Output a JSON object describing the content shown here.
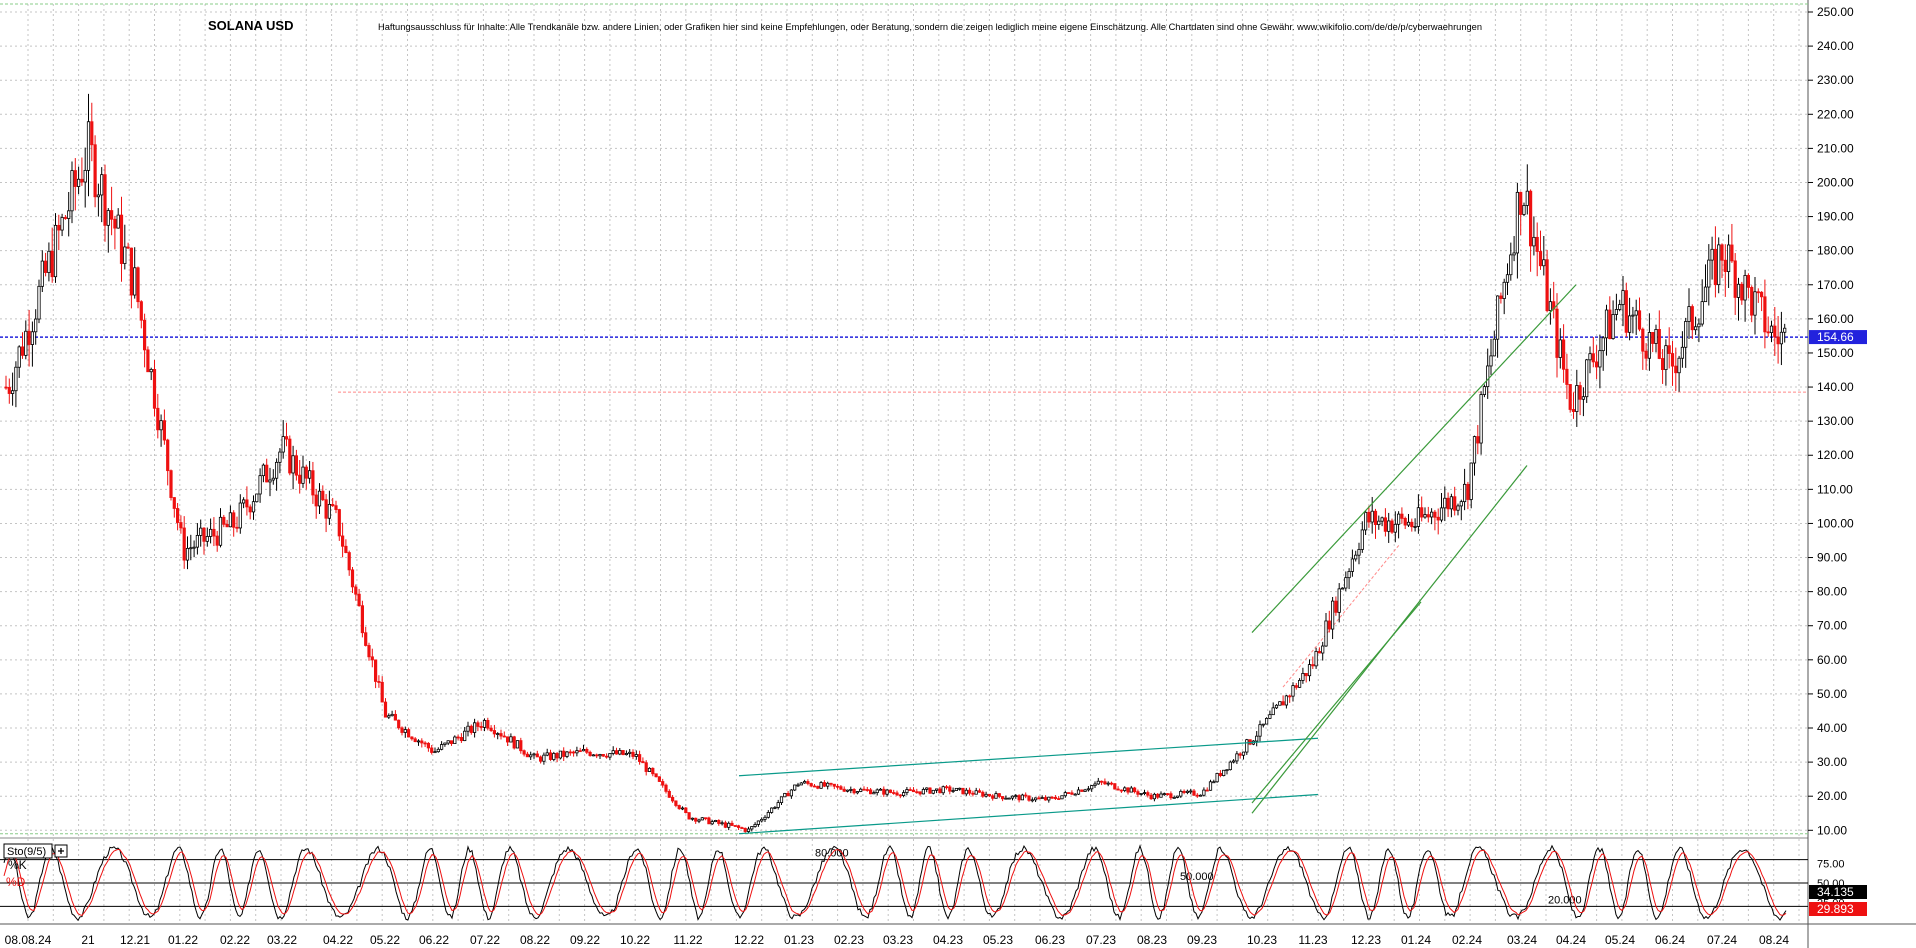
{
  "chart_data": {
    "type": "candlestick",
    "title": "SOLANA USD",
    "disclaimer": "Haftungsausschluss für Inhalte: Alle Trendkanäle bzw. andere Linien, oder Grafiken hier sind keine Empfehlungen, oder Beratung, sondern die zeigen lediglich meine eigene Einschätzung. Alle Chartdaten sind ohne Gewähr. www.wikifolio.com/de/de/p/cyberwaehrungen",
    "x_labels": [
      "08.08.24",
      "11.21",
      "12.21",
      "01.22",
      "02.22",
      "03.22",
      "04.22",
      "05.22",
      "06.22",
      "07.22",
      "08.22",
      "09.22",
      "10.22",
      "11.22",
      "12.22",
      "01.23",
      "02.23",
      "03.23",
      "04.23",
      "05.23",
      "06.23",
      "07.23",
      "08.23",
      "09.23",
      "10.23",
      "11.23",
      "12.23",
      "01.24",
      "02.24",
      "03.24",
      "04.24",
      "05.24",
      "06.24",
      "07.24",
      "08.24"
    ],
    "x_labels_display": [
      "08.08.24",
      "21",
      "12.21",
      "01.22",
      "02.22",
      "03.22",
      "04.22",
      "05.22",
      "06.22",
      "07.22",
      "08.22",
      "09.22",
      "10.22",
      "11.22",
      "12.22",
      "01.23",
      "02.23",
      "03.23",
      "04.23",
      "05.23",
      "06.23",
      "07.23",
      "08.23",
      "09.23",
      "10.23",
      "11.23",
      "12.23",
      "01.24",
      "02.24",
      "03.24",
      "04.24",
      "05.24",
      "06.24",
      "07.24",
      "08.24"
    ],
    "y_ticks": [
      "250.00",
      "240.00",
      "230.00",
      "220.00",
      "210.00",
      "200.00",
      "190.00",
      "180.00",
      "170.00",
      "160.00",
      "150.00",
      "140.00",
      "130.00",
      "120.00",
      "110.00",
      "100.00",
      "90.00",
      "80.00",
      "70.00",
      "60.00",
      "50.00",
      "40.00",
      "30.00",
      "20.00",
      "10.00"
    ],
    "ylim": [
      5,
      253
    ],
    "last_price": "154.66",
    "reference_level": 138.5,
    "green_horizontal_level": 9,
    "monthly_close_approx": [
      {
        "month": "11.21",
        "close": 210
      },
      {
        "month": "12.21",
        "close": 170
      },
      {
        "month": "01.22",
        "close": 92
      },
      {
        "month": "02.22",
        "close": 100
      },
      {
        "month": "03.22",
        "close": 122
      },
      {
        "month": "04.22",
        "close": 100
      },
      {
        "month": "05.22",
        "close": 44
      },
      {
        "month": "06.22",
        "close": 33
      },
      {
        "month": "07.22",
        "close": 42
      },
      {
        "month": "08.22",
        "close": 31
      },
      {
        "month": "09.22",
        "close": 33
      },
      {
        "month": "10.22",
        "close": 32
      },
      {
        "month": "11.22",
        "close": 14
      },
      {
        "month": "12.22",
        "close": 10
      },
      {
        "month": "01.23",
        "close": 24
      },
      {
        "month": "02.23",
        "close": 22
      },
      {
        "month": "03.23",
        "close": 21
      },
      {
        "month": "04.23",
        "close": 22
      },
      {
        "month": "05.23",
        "close": 20
      },
      {
        "month": "06.23",
        "close": 19
      },
      {
        "month": "07.23",
        "close": 24
      },
      {
        "month": "08.23",
        "close": 20
      },
      {
        "month": "09.23",
        "close": 21
      },
      {
        "month": "10.23",
        "close": 40
      },
      {
        "month": "11.23",
        "close": 59
      },
      {
        "month": "12.23",
        "close": 101
      },
      {
        "month": "01.24",
        "close": 100
      },
      {
        "month": "02.24",
        "close": 110
      },
      {
        "month": "03.24",
        "close": 200
      },
      {
        "month": "04.24",
        "close": 135
      },
      {
        "month": "05.24",
        "close": 165
      },
      {
        "month": "06.24",
        "close": 145
      },
      {
        "month": "07.24",
        "close": 180
      },
      {
        "month": "08.24",
        "close": 154.66
      }
    ],
    "trendlines": [
      {
        "color": "#0a9a8a",
        "from": [
          "12.22",
          26
        ],
        "to": [
          "11.23",
          37
        ]
      },
      {
        "color": "#0a9a8a",
        "from": [
          "12.22",
          9
        ],
        "to": [
          "11.23",
          20.5
        ]
      },
      {
        "color": "#3a9a3a",
        "from": [
          "10.23",
          68
        ],
        "to": [
          "04.24",
          170
        ]
      },
      {
        "color": "#3a9a3a",
        "from": [
          "10.23",
          15
        ],
        "to": [
          "03.24",
          117
        ]
      },
      {
        "color": "#3a9a3a",
        "from": [
          "10.23",
          18
        ],
        "to": [
          "01.24",
          77
        ]
      }
    ],
    "oscillator": {
      "name": "Sto(9/5)",
      "k_label": "%K",
      "d_label": "%D",
      "ylim": [
        0,
        100
      ],
      "levels": [
        {
          "value": 80,
          "label": "80.000"
        },
        {
          "value": 50,
          "label": "50.000"
        },
        {
          "value": 20,
          "label": "20.000"
        }
      ],
      "axis_ticks": [
        "75.00",
        "50.00",
        "25.00"
      ],
      "k_last": "34.135",
      "d_last": "29.893",
      "colors": {
        "k": "#000000",
        "d": "#ee1111"
      }
    },
    "colors": {
      "up": "#000000",
      "down": "#ee1111",
      "last_price": "#2222dd",
      "reference": "#ff8888",
      "grid": "#c4c4c4"
    }
  }
}
